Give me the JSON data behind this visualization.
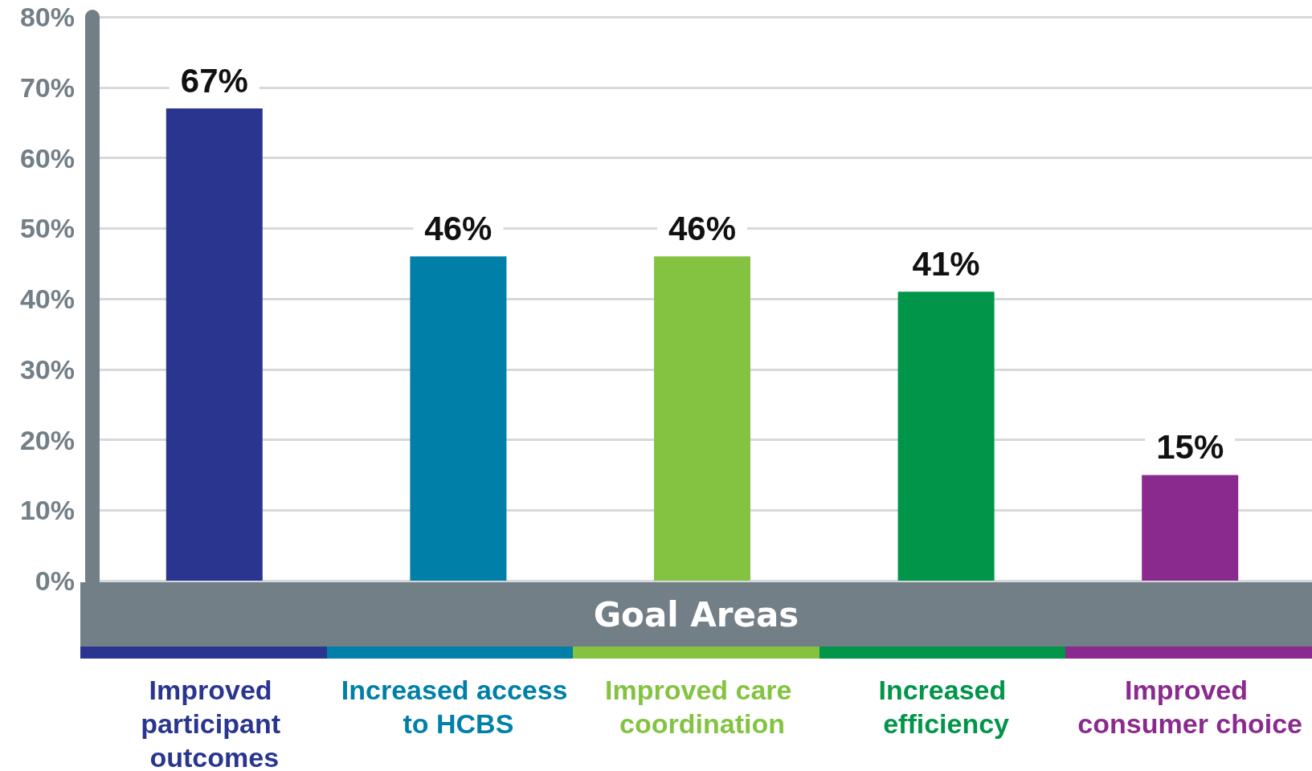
{
  "chart_data": {
    "type": "bar",
    "xlabel": "Goal Areas",
    "categories": [
      "Improved participant outcomes",
      "Increased access to HCBS",
      "Improved care coordination",
      "Increased efficiency",
      "Improved consumer choice"
    ],
    "values": [
      67,
      46,
      46,
      41,
      15
    ],
    "colors": [
      "#29358f",
      "#0080a8",
      "#84c341",
      "#009548",
      "#8b2a8e"
    ],
    "value_labels": [
      "67%",
      "46%",
      "46%",
      "41%",
      "15%"
    ],
    "ylim": [
      0,
      80
    ],
    "yticks": [
      {
        "value": 0,
        "label": "0%"
      },
      {
        "value": 10,
        "label": "10%"
      },
      {
        "value": 20,
        "label": "20%"
      },
      {
        "value": 30,
        "label": "30%"
      },
      {
        "value": 40,
        "label": "40%"
      },
      {
        "value": 50,
        "label": "50%"
      },
      {
        "value": 60,
        "label": "60%"
      },
      {
        "value": 70,
        "label": "70%"
      },
      {
        "value": 80,
        "label": "80%"
      }
    ],
    "grid": "y"
  }
}
